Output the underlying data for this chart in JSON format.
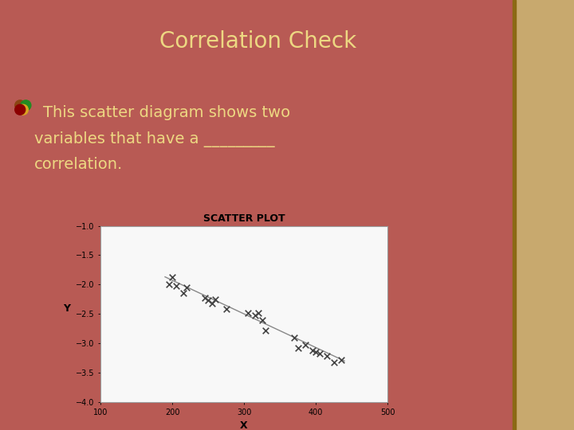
{
  "title": "Correlation Check",
  "title_color": "#EDD882",
  "bg_color": "#B85A54",
  "subtitle_line1": "This scatter diagram shows two",
  "subtitle_line2": "variables that have a _________",
  "subtitle_line3": "correlation.",
  "subtitle_color": "#EDD882",
  "scatter_title": "SCATTER PLOT",
  "xlabel": "X",
  "ylabel": "Y",
  "xlim": [
    100,
    500
  ],
  "ylim": [
    -4,
    -1
  ],
  "yticks": [
    -1,
    -1.5,
    -2,
    -2.5,
    -3,
    -3.5,
    -4
  ],
  "xticks": [
    100,
    200,
    300,
    400,
    500
  ],
  "scatter_x": [
    195,
    200,
    205,
    215,
    220,
    245,
    250,
    255,
    260,
    275,
    305,
    315,
    320,
    325,
    330,
    370,
    375,
    385,
    395,
    400,
    405,
    415,
    425,
    435
  ],
  "scatter_y": [
    -2.0,
    -1.87,
    -2.02,
    -2.15,
    -2.05,
    -2.22,
    -2.27,
    -2.32,
    -2.25,
    -2.42,
    -2.48,
    -2.52,
    -2.48,
    -2.6,
    -2.78,
    -2.9,
    -3.08,
    -3.03,
    -3.12,
    -3.15,
    -3.18,
    -3.22,
    -3.33,
    -3.28
  ],
  "line_x": [
    190,
    440
  ],
  "line_y": [
    -1.87,
    -3.3
  ],
  "marker_color": "#444444",
  "line_color": "#888888",
  "right_panel_color": "#C8A96E",
  "right_floral_color": "#D4B896"
}
